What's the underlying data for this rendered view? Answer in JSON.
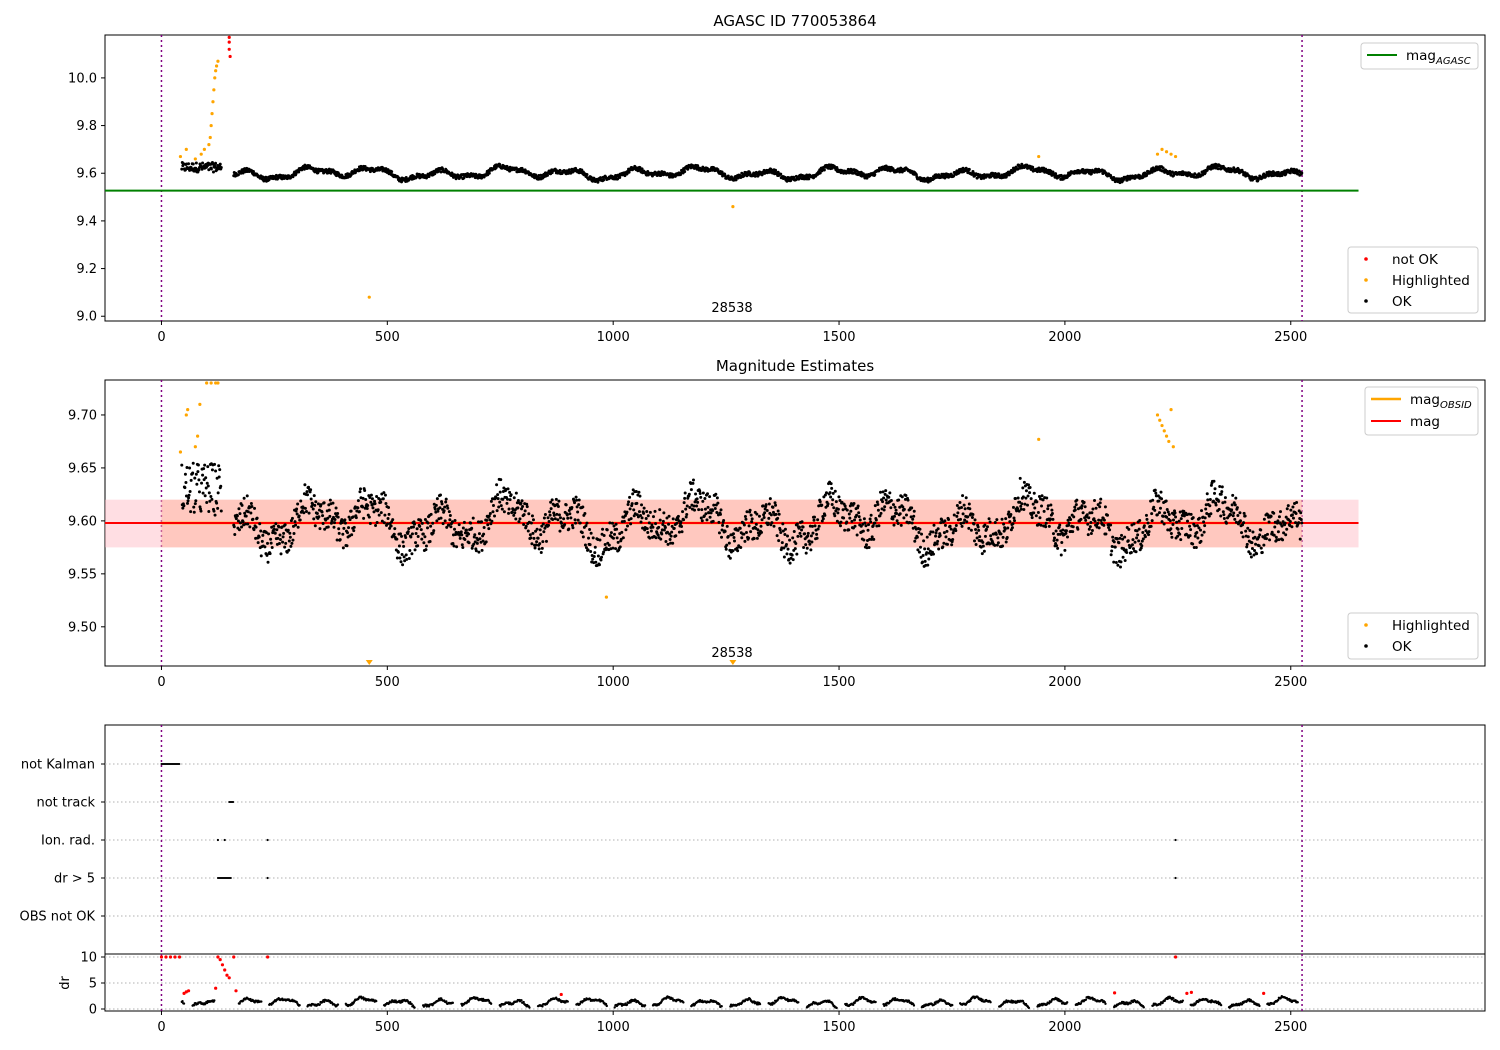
{
  "chart_data": [
    {
      "type": "scatter",
      "title": "AGASC ID 770053864",
      "xlabel": "",
      "ylabel": "",
      "xlim": [
        -125,
        2930
      ],
      "ylim": [
        8.98,
        10.18
      ],
      "xticks": [
        0,
        500,
        1000,
        1500,
        2000,
        2500
      ],
      "yticks": [
        9.0,
        9.2,
        9.4,
        9.6,
        9.8,
        10.0
      ],
      "ytick_labels": [
        "9.0",
        "9.2",
        "9.4",
        "9.6",
        "9.8",
        "10.0"
      ],
      "vlines": [
        0,
        2525
      ],
      "series": [
        {
          "name": "not OK",
          "color": "#ff0000",
          "points": [
            [
              150,
              10.17
            ],
            [
              150,
              10.15
            ],
            [
              150,
              10.12
            ],
            [
              152,
              10.09
            ]
          ]
        },
        {
          "name": "Highlighted",
          "color": "#ffa500",
          "points": [
            [
              42,
              9.67
            ],
            [
              55,
              9.7
            ],
            [
              75,
              9.66
            ],
            [
              88,
              9.68
            ],
            [
              95,
              9.7
            ],
            [
              105,
              9.72
            ],
            [
              108,
              9.75
            ],
            [
              110,
              9.8
            ],
            [
              112,
              9.85
            ],
            [
              114,
              9.9
            ],
            [
              116,
              9.95
            ],
            [
              118,
              10.0
            ],
            [
              120,
              10.03
            ],
            [
              122,
              10.05
            ],
            [
              125,
              10.07
            ],
            [
              460,
              9.08
            ],
            [
              1265,
              9.46
            ],
            [
              1942,
              9.67
            ],
            [
              2205,
              9.68
            ],
            [
              2215,
              9.7
            ],
            [
              2225,
              9.69
            ],
            [
              2235,
              9.68
            ],
            [
              2245,
              9.67
            ]
          ]
        },
        {
          "name": "OK",
          "color": "#000000",
          "x_range": [
            40,
            2525
          ],
          "baseline": 9.6,
          "amplitude": 0.03
        }
      ],
      "hlines": [
        {
          "name": "mag_AGASC",
          "label": "mag",
          "subscript": "AGASC",
          "y": 9.527,
          "x_range": [
            -125,
            2650
          ],
          "color": "#008000"
        }
      ],
      "annotation": "28538",
      "annotation_x": 1265,
      "legend_lines": "top-right",
      "legend_points": "bottom-right"
    },
    {
      "type": "scatter",
      "title": "Magnitude Estimates",
      "xlim": [
        -125,
        2930
      ],
      "ylim": [
        9.463,
        9.733
      ],
      "xticks": [
        0,
        500,
        1000,
        1500,
        2000,
        2500
      ],
      "yticks": [
        9.5,
        9.55,
        9.6,
        9.65,
        9.7
      ],
      "ytick_labels": [
        "9.50",
        "9.55",
        "9.60",
        "9.65",
        "9.70"
      ],
      "vlines": [
        0,
        2525
      ],
      "series": [
        {
          "name": "Highlighted",
          "color": "#ffa500",
          "points": [
            [
              42,
              9.665
            ],
            [
              55,
              9.7
            ],
            [
              58,
              9.705
            ],
            [
              75,
              9.67
            ],
            [
              80,
              9.68
            ],
            [
              85,
              9.71
            ],
            [
              100,
              9.733
            ],
            [
              110,
              9.733
            ],
            [
              120,
              9.733
            ],
            [
              125,
              9.733
            ],
            [
              985,
              9.528
            ],
            [
              1942,
              9.677
            ],
            [
              2205,
              9.7
            ],
            [
              2210,
              9.695
            ],
            [
              2215,
              9.69
            ],
            [
              2220,
              9.685
            ],
            [
              2225,
              9.68
            ],
            [
              2230,
              9.675
            ],
            [
              2235,
              9.705
            ],
            [
              2240,
              9.67
            ]
          ]
        },
        {
          "name": "OK",
          "color": "#000000",
          "x_range": [
            40,
            2525
          ],
          "baseline": 9.598,
          "amplitude": 0.02
        }
      ],
      "markers_below": [
        {
          "x": 460
        },
        {
          "x": 1265
        }
      ],
      "lines": [
        {
          "name": "mag_OBSID",
          "label": "mag",
          "subscript": "OBSID",
          "color": "#ffa500",
          "value": 9.598,
          "band": [
            9.575,
            9.62
          ],
          "x_range": [
            0,
            2525
          ]
        },
        {
          "name": "mag",
          "label": "mag",
          "color": "#ff0000",
          "value": 9.598,
          "band": [
            9.575,
            9.62
          ],
          "x_range": [
            -125,
            2650
          ]
        }
      ],
      "annotation": "28538",
      "annotation_x": 1265,
      "legend_lines": "top-right",
      "legend_points": "bottom-right"
    },
    {
      "type": "scatter",
      "title": "",
      "xlim": [
        -125,
        2930
      ],
      "xticks": [
        0,
        500,
        1000,
        1500,
        2000,
        2500
      ],
      "vlines": [
        0,
        2525
      ],
      "flag_rows": [
        {
          "label": "not Kalman",
          "x_ranges": [
            [
              0,
              40
            ]
          ]
        },
        {
          "label": "not track",
          "x_ranges": [
            [
              150,
              160
            ]
          ]
        },
        {
          "label": "Ion. rad.",
          "x_points": [
            125,
            140,
            235,
            2245
          ]
        },
        {
          "label": "dr > 5",
          "x_ranges": [
            [
              125,
              155
            ]
          ],
          "x_points": [
            235,
            2245
          ]
        },
        {
          "label": "OBS not OK",
          "x_points": []
        }
      ]
    },
    {
      "type": "scatter",
      "ylabel": "dr",
      "xlim": [
        -125,
        2930
      ],
      "ylim": [
        0,
        10
      ],
      "xticks": [
        0,
        500,
        1000,
        1500,
        2000,
        2500
      ],
      "yticks": [
        0,
        5,
        10
      ],
      "ytick_labels": [
        "0",
        "5",
        "10"
      ],
      "vlines": [
        0,
        2525
      ],
      "series": [
        {
          "name": "dr not OK",
          "color": "#ff0000",
          "points": [
            [
              0,
              10
            ],
            [
              10,
              10
            ],
            [
              20,
              10
            ],
            [
              30,
              10
            ],
            [
              40,
              10
            ],
            [
              50,
              3
            ],
            [
              55,
              3.3
            ],
            [
              60,
              3.5
            ],
            [
              120,
              4
            ],
            [
              125,
              10
            ],
            [
              130,
              9.5
            ],
            [
              135,
              8.5
            ],
            [
              140,
              7.5
            ],
            [
              145,
              6.5
            ],
            [
              150,
              6
            ],
            [
              160,
              10
            ],
            [
              165,
              3.5
            ],
            [
              235,
              10
            ],
            [
              885,
              2.8
            ],
            [
              2110,
              3.1
            ],
            [
              2245,
              10
            ],
            [
              2270,
              3
            ],
            [
              2280,
              3.2
            ],
            [
              2440,
              3
            ]
          ]
        },
        {
          "name": "dr OK",
          "color": "#000000",
          "x_range": [
            40,
            2525
          ],
          "baseline": 1.2,
          "amplitude": 1.0
        }
      ],
      "x_tick_labels": [
        "0",
        "500",
        "1000",
        "1500",
        "2000",
        "2500"
      ]
    }
  ]
}
